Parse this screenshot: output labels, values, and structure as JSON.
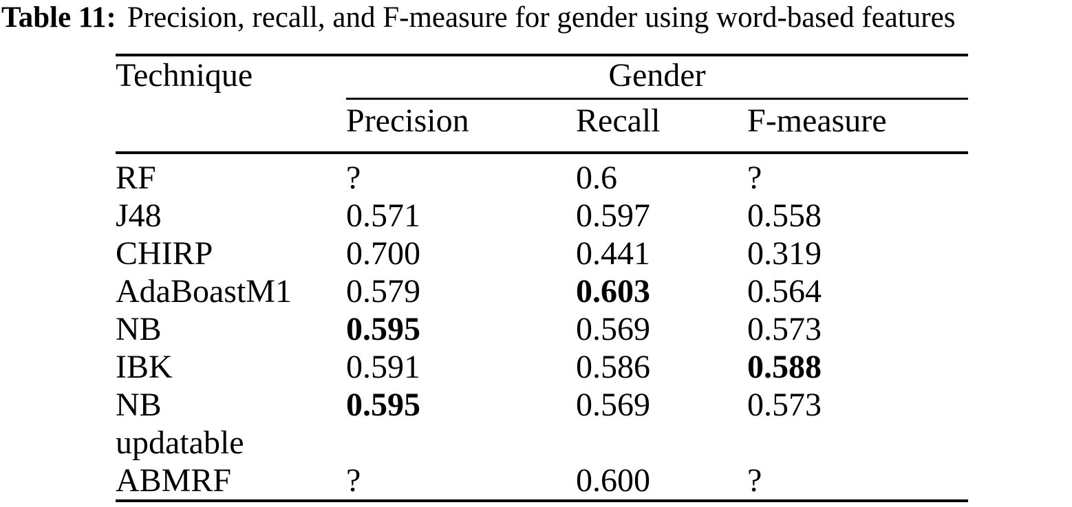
{
  "caption": {
    "label": "Table 11:",
    "text": "Precision, recall, and F-measure for gender using word-based features"
  },
  "colors": {
    "text": "#000000",
    "background": "#ffffff"
  },
  "table": {
    "col_header": "Technique",
    "group_header": "Gender",
    "sub_headers": [
      "Precision",
      "Recall",
      "F-measure"
    ],
    "rows": [
      {
        "technique": "RF",
        "precision": "?",
        "recall": "0.6",
        "fmeasure": "?"
      },
      {
        "technique": "J48",
        "precision": "0.571",
        "recall": "0.597",
        "fmeasure": "0.558"
      },
      {
        "technique": "CHIRP",
        "precision": "0.700",
        "recall": "0.441",
        "fmeasure": "0.319"
      },
      {
        "technique": "AdaBoastM1",
        "precision": "0.579",
        "recall": "0.603",
        "recall_bold": true,
        "fmeasure": "0.564"
      },
      {
        "technique": "NB",
        "precision": "0.595",
        "precision_bold": true,
        "recall": "0.569",
        "fmeasure": "0.573"
      },
      {
        "technique": "IBK",
        "precision": "0.591",
        "recall": "0.586",
        "fmeasure": "0.588",
        "fmeasure_bold": true
      },
      {
        "technique": "NB",
        "technique_line2": "updatable",
        "precision": "0.595",
        "precision_bold": true,
        "recall": "0.569",
        "fmeasure": "0.573"
      },
      {
        "technique": "ABMRF",
        "precision": "?",
        "recall": "0.600",
        "fmeasure": "?"
      }
    ]
  }
}
